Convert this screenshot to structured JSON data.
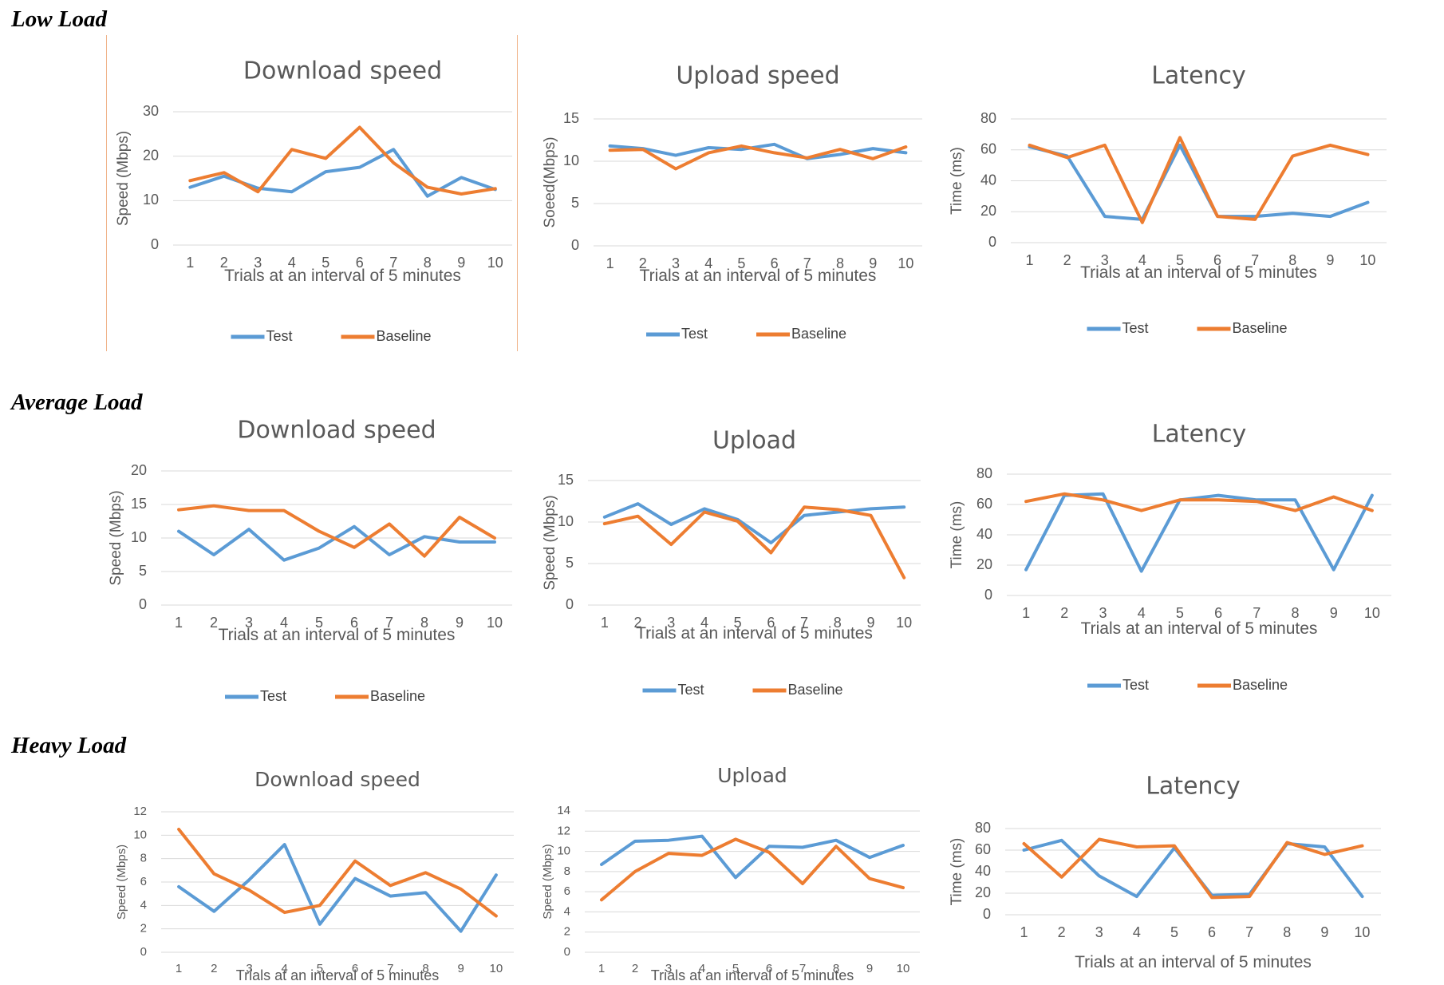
{
  "sections": [
    {
      "title": "Low Load"
    },
    {
      "title": "Average Load"
    },
    {
      "title": "Heavy Load"
    }
  ],
  "colors": {
    "test": "#5b9bd5",
    "baseline": "#ed7d31",
    "grid": "#d9d9d9",
    "text": "#595959"
  },
  "chart_data": [
    {
      "type": "line",
      "section": "Low Load",
      "title": "Download speed",
      "xlabel": "Trials at an interval of 5 minutes",
      "ylabel": "Speed (Mbps)",
      "ylim": [
        0,
        30
      ],
      "yticks": [
        0,
        10,
        20,
        30
      ],
      "grid": true,
      "legend": "bottom",
      "x": [
        1,
        2,
        3,
        4,
        5,
        6,
        7,
        8,
        9,
        10
      ],
      "series": [
        {
          "name": "Test",
          "values": [
            13,
            15.5,
            12.8,
            12,
            16.5,
            17.5,
            21.5,
            11,
            15.2,
            12.5
          ]
        },
        {
          "name": "Baseline",
          "values": [
            14.5,
            16.3,
            12,
            21.5,
            19.5,
            26.5,
            18.5,
            13,
            11.5,
            12.7
          ]
        }
      ]
    },
    {
      "type": "line",
      "section": "Low Load",
      "title": "Upload speed",
      "xlabel": "Trials at an interval of 5 minutes",
      "ylabel": "Soeed(Mbps)",
      "ylim": [
        0,
        15
      ],
      "yticks": [
        0,
        5,
        10,
        15
      ],
      "grid": true,
      "legend": "bottom",
      "x": [
        1,
        2,
        3,
        4,
        5,
        6,
        7,
        8,
        9,
        10
      ],
      "series": [
        {
          "name": "Test",
          "values": [
            11.8,
            11.5,
            10.7,
            11.6,
            11.4,
            12,
            10.3,
            10.8,
            11.5,
            11
          ]
        },
        {
          "name": "Baseline",
          "values": [
            11.3,
            11.4,
            9.1,
            11,
            11.8,
            11,
            10.4,
            11.4,
            10.3,
            11.7
          ]
        }
      ]
    },
    {
      "type": "line",
      "section": "Low Load",
      "title": "Latency",
      "xlabel": "Trials at an interval of 5 minutes",
      "ylabel": "Time (ms)",
      "ylim": [
        0,
        80
      ],
      "yticks": [
        0,
        20,
        40,
        60,
        80
      ],
      "grid": true,
      "legend": "bottom",
      "x": [
        1,
        2,
        3,
        4,
        5,
        6,
        7,
        8,
        9,
        10
      ],
      "series": [
        {
          "name": "Test",
          "values": [
            62,
            56,
            17,
            15,
            63,
            17,
            17,
            19,
            17,
            26
          ]
        },
        {
          "name": "Baseline",
          "values": [
            63,
            55,
            63,
            13,
            68,
            17,
            15,
            56,
            63,
            57
          ]
        }
      ]
    },
    {
      "type": "line",
      "section": "Average Load",
      "title": "Download speed",
      "xlabel": "Trials at an interval of 5 minutes",
      "ylabel": "Speed (Mbps)",
      "ylim": [
        0,
        20
      ],
      "yticks": [
        0,
        5,
        10,
        15,
        20
      ],
      "grid": true,
      "legend": "bottom",
      "x": [
        1,
        2,
        3,
        4,
        5,
        6,
        7,
        8,
        9,
        10
      ],
      "series": [
        {
          "name": "Test",
          "values": [
            11,
            7.5,
            11.3,
            6.7,
            8.5,
            11.7,
            7.5,
            10.2,
            9.4,
            9.4
          ]
        },
        {
          "name": "Baseline",
          "values": [
            14.2,
            14.8,
            14.1,
            14.1,
            11,
            8.6,
            12.1,
            7.3,
            13.1,
            10
          ]
        }
      ]
    },
    {
      "type": "line",
      "section": "Average Load",
      "title": "Upload",
      "xlabel": "Trials at an interval of 5 minutes",
      "ylabel": "Speed (Mbps)",
      "ylim": [
        0,
        15
      ],
      "yticks": [
        0,
        5,
        10,
        15
      ],
      "grid": true,
      "legend": "bottom",
      "x": [
        1,
        2,
        3,
        4,
        5,
        6,
        7,
        8,
        9,
        10
      ],
      "series": [
        {
          "name": "Test",
          "values": [
            10.6,
            12.2,
            9.7,
            11.6,
            10.3,
            7.5,
            10.8,
            11.2,
            11.6,
            11.8
          ]
        },
        {
          "name": "Baseline",
          "values": [
            9.8,
            10.7,
            7.3,
            11.2,
            10.1,
            6.3,
            11.8,
            11.5,
            10.8,
            3.3
          ]
        }
      ]
    },
    {
      "type": "line",
      "section": "Average Load",
      "title": "Latency",
      "xlabel": "Trials at an interval of 5 minutes",
      "ylabel": "Time (ms)",
      "ylim": [
        0,
        80
      ],
      "yticks": [
        0,
        20,
        40,
        60,
        80
      ],
      "grid": true,
      "legend": "bottom",
      "x": [
        1,
        2,
        3,
        4,
        5,
        6,
        7,
        8,
        9,
        10
      ],
      "series": [
        {
          "name": "Test",
          "values": [
            17,
            66,
            67,
            16,
            63,
            66,
            63,
            63,
            17,
            66
          ]
        },
        {
          "name": "Baseline",
          "values": [
            62,
            67,
            63,
            56,
            63,
            63,
            62,
            56,
            65,
            56
          ]
        }
      ]
    },
    {
      "type": "line",
      "section": "Heavy Load",
      "title": "Download speed",
      "xlabel": "Trials at an interval of 5 minutes",
      "ylabel": "Speed (Mbps)",
      "ylim": [
        0,
        12
      ],
      "yticks": [
        0,
        2,
        4,
        6,
        8,
        10,
        12
      ],
      "grid": true,
      "legend": "none",
      "x": [
        1,
        2,
        3,
        4,
        5,
        6,
        7,
        8,
        9,
        10
      ],
      "series": [
        {
          "name": "Test",
          "values": [
            5.6,
            3.5,
            6.2,
            9.2,
            2.4,
            6.3,
            4.8,
            5.1,
            1.8,
            6.6
          ]
        },
        {
          "name": "Baseline",
          "values": [
            10.5,
            6.7,
            5.3,
            3.4,
            4,
            7.8,
            5.7,
            6.8,
            5.4,
            3.1
          ]
        }
      ]
    },
    {
      "type": "line",
      "section": "Heavy Load",
      "title": "Upload",
      "xlabel": "Trials at an interval of 5 minutes",
      "ylabel": "Speed (Mbps)",
      "ylim": [
        0,
        14
      ],
      "yticks": [
        0,
        2,
        4,
        6,
        8,
        10,
        12,
        14
      ],
      "grid": true,
      "legend": "none",
      "x": [
        1,
        2,
        3,
        4,
        5,
        6,
        7,
        8,
        9,
        10
      ],
      "series": [
        {
          "name": "Test",
          "values": [
            8.7,
            11,
            11.1,
            11.5,
            7.4,
            10.5,
            10.4,
            11.1,
            9.4,
            10.6
          ]
        },
        {
          "name": "Baseline",
          "values": [
            5.2,
            8,
            9.8,
            9.6,
            11.2,
            9.9,
            6.8,
            10.5,
            7.3,
            6.4
          ]
        }
      ]
    },
    {
      "type": "line",
      "section": "Heavy Load",
      "title": "Latency",
      "xlabel": "Trials at an interval of 5 minutes",
      "ylabel": "Time (ms)",
      "ylim": [
        0,
        80
      ],
      "yticks": [
        0,
        20,
        40,
        60,
        80
      ],
      "grid": true,
      "legend": "none",
      "x": [
        1,
        2,
        3,
        4,
        5,
        6,
        7,
        8,
        9,
        10
      ],
      "series": [
        {
          "name": "Test",
          "values": [
            60,
            69,
            36,
            17,
            62,
            18,
            19,
            66,
            63,
            17
          ]
        },
        {
          "name": "Baseline",
          "values": [
            66,
            35,
            70,
            63,
            64,
            16,
            17,
            67,
            56,
            64
          ]
        }
      ]
    }
  ]
}
